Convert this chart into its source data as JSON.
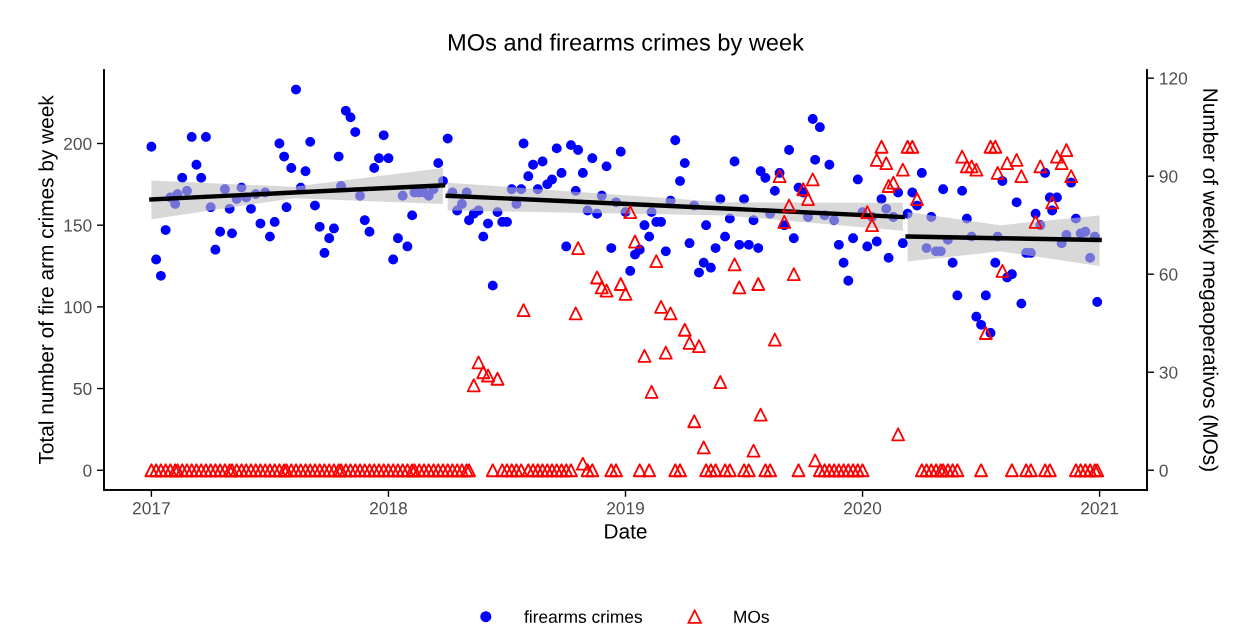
{
  "chart_data": {
    "type": "scatter",
    "title": "MOs and firearms crimes by week",
    "xlabel": "Date",
    "ylabel": "Total number of fire arm crimes by week",
    "y2label": "Number of weekly megaoperativos (MOs)",
    "xlim": [
      2016.8,
      2021.2
    ],
    "xticks": [
      2017,
      2018,
      2019,
      2020,
      2021
    ],
    "ylim": [
      -12,
      245
    ],
    "yticks": [
      0,
      50,
      100,
      150,
      200
    ],
    "y2lim": [
      -6,
      122.5
    ],
    "y2ticks": [
      0,
      30,
      60,
      90,
      120
    ],
    "grid": false,
    "legend": "bottom",
    "x": [
      2017,
      2017.02,
      2017.04,
      2017.06,
      2017.08,
      2017.1,
      2017.11,
      2017.13,
      2017.15,
      2017.17,
      2017.19,
      2017.21,
      2017.23,
      2017.25,
      2017.27,
      2017.29,
      2017.31,
      2017.33,
      2017.34,
      2017.36,
      2017.38,
      2017.4,
      2017.42,
      2017.44,
      2017.46,
      2017.48,
      2017.5,
      2017.52,
      2017.54,
      2017.56,
      2017.57,
      2017.59,
      2017.61,
      2017.63,
      2017.65,
      2017.67,
      2017.69,
      2017.71,
      2017.73,
      2017.75,
      2017.77,
      2017.79,
      2017.8,
      2017.82,
      2017.84,
      2017.86,
      2017.88,
      2017.9,
      2017.92,
      2017.94,
      2017.96,
      2017.98,
      2018,
      2018.02,
      2018.04,
      2018.06,
      2018.08,
      2018.1,
      2018.11,
      2018.13,
      2018.15,
      2018.17,
      2018.19,
      2018.21,
      2018.23,
      2018.25,
      2018.27,
      2018.29,
      2018.31,
      2018.33,
      2018.34,
      2018.36,
      2018.38,
      2018.4,
      2018.42,
      2018.44,
      2018.46,
      2018.48,
      2018.5,
      2018.52,
      2018.54,
      2018.56,
      2018.57,
      2018.59,
      2018.61,
      2018.63,
      2018.65,
      2018.67,
      2018.69,
      2018.71,
      2018.73,
      2018.75,
      2018.77,
      2018.79,
      2018.8,
      2018.82,
      2018.84,
      2018.86,
      2018.88,
      2018.9,
      2018.92,
      2018.94,
      2018.96,
      2018.98,
      2019,
      2019.02,
      2019.04,
      2019.06,
      2019.08,
      2019.1,
      2019.11,
      2019.13,
      2019.15,
      2019.17,
      2019.19,
      2019.21,
      2019.23,
      2019.25,
      2019.27,
      2019.29,
      2019.31,
      2019.33,
      2019.34,
      2019.36,
      2019.38,
      2019.4,
      2019.42,
      2019.44,
      2019.46,
      2019.48,
      2019.5,
      2019.52,
      2019.54,
      2019.56,
      2019.57,
      2019.59,
      2019.61,
      2019.63,
      2019.65,
      2019.67,
      2019.69,
      2019.71,
      2019.73,
      2019.75,
      2019.77,
      2019.79,
      2019.8,
      2019.82,
      2019.84,
      2019.86,
      2019.88,
      2019.9,
      2019.92,
      2019.94,
      2019.96,
      2019.98,
      2020,
      2020.02,
      2020.04,
      2020.06,
      2020.08,
      2020.1,
      2020.11,
      2020.13,
      2020.15,
      2020.17,
      2020.19,
      2020.21,
      2020.23,
      2020.25,
      2020.27,
      2020.29,
      2020.31,
      2020.33,
      2020.34,
      2020.36,
      2020.38,
      2020.4,
      2020.42,
      2020.44,
      2020.46,
      2020.48,
      2020.5,
      2020.52,
      2020.54,
      2020.56,
      2020.57,
      2020.59,
      2020.61,
      2020.63,
      2020.65,
      2020.67,
      2020.69,
      2020.71,
      2020.73,
      2020.75,
      2020.77,
      2020.79,
      2020.8,
      2020.82,
      2020.84,
      2020.86,
      2020.88,
      2020.9,
      2020.92,
      2020.94,
      2020.96,
      2020.98,
      2020.99
    ],
    "series": [
      {
        "name": "firearms crimes",
        "marker": "circle",
        "color": "#0000ff",
        "values": [
          198,
          129,
          119,
          147,
          167,
          163,
          169,
          179,
          171,
          204,
          187,
          179,
          204,
          161,
          135,
          146,
          172,
          160,
          145,
          166,
          173,
          167,
          160,
          169,
          151,
          170,
          143,
          152,
          200,
          192,
          161,
          185,
          233,
          173,
          183,
          201,
          162,
          149,
          133,
          142,
          148,
          192,
          174,
          220,
          216,
          207,
          168,
          153,
          146,
          185,
          191,
          205,
          191,
          129,
          142,
          168,
          137,
          156,
          170,
          170,
          170,
          168,
          172,
          188,
          177,
          203,
          170,
          159,
          163,
          170,
          153,
          157,
          159,
          143,
          151,
          113,
          158,
          152,
          152,
          172,
          163,
          172,
          200,
          180,
          187,
          172,
          189,
          175,
          178,
          197,
          182,
          137,
          199,
          171,
          196,
          182,
          159,
          191,
          157,
          168,
          186,
          136,
          164,
          195,
          158,
          122,
          132,
          135,
          150,
          143,
          158,
          152,
          152,
          134,
          165,
          202,
          177,
          188,
          139,
          162,
          121,
          127,
          150,
          124,
          136,
          166,
          143,
          154,
          189,
          138,
          166,
          138,
          153,
          136,
          183,
          179,
          157,
          171,
          182,
          150,
          196,
          142,
          173,
          170,
          155,
          215,
          190,
          210,
          156,
          187,
          153,
          138,
          127,
          116,
          142,
          178,
          158,
          137,
          155,
          140,
          166,
          160,
          130,
          155,
          170,
          139,
          157,
          170,
          162,
          182,
          136,
          155,
          134,
          134,
          172,
          141,
          127,
          107,
          171,
          154,
          143,
          94,
          89,
          107,
          84,
          127,
          143,
          177,
          118,
          120,
          164,
          102,
          133,
          133,
          157,
          150,
          182,
          167,
          159,
          167,
          139,
          144,
          176,
          154,
          145,
          146,
          130,
          143,
          103
        ]
      },
      {
        "type": "line",
        "color": "#000000",
        "x": [
          2017.0,
          2017.6,
          2018.23
        ],
        "values": [
          165.7,
          170,
          174.4
        ],
        "lower": [
          153.7,
          166.5,
          163
        ],
        "upper": [
          177.3,
          173.5,
          185
        ]
      },
      {
        "type": "line",
        "color": "#000000",
        "x": [
          2018.25,
          2019.42,
          2020.17
        ],
        "values": [
          168,
          160.2,
          155
        ],
        "lower": [
          159,
          156,
          146.6
        ],
        "upper": [
          176,
          164,
          163.7
        ]
      },
      {
        "type": "line",
        "color": "#000000",
        "x": [
          2020.19,
          2020.58,
          2021.0
        ],
        "values": [
          143.1,
          142,
          140.9
        ],
        "lower": [
          127.7,
          134,
          125
        ],
        "upper": [
          158,
          150,
          156
        ]
      },
      {
        "name": "MOs",
        "marker": "triangle",
        "axis": "y2",
        "color": "#ff0000",
        "values": [
          0,
          0,
          0,
          0,
          0,
          0,
          0,
          0,
          0,
          0,
          0,
          0,
          0,
          0,
          0,
          0,
          0,
          0,
          0,
          0,
          0,
          0,
          0,
          0,
          0,
          0,
          0,
          0,
          0,
          0,
          0,
          0,
          0,
          0,
          0,
          0,
          0,
          0,
          0,
          0,
          0,
          0,
          0,
          0,
          0,
          0,
          0,
          0,
          0,
          0,
          0,
          0,
          0,
          0,
          0,
          0,
          0,
          0,
          0,
          0,
          0,
          0,
          0,
          0,
          0,
          0,
          0,
          0,
          0,
          0,
          0,
          26,
          33,
          30,
          29,
          0,
          28,
          0,
          0,
          0,
          0,
          0,
          49,
          0,
          0,
          0,
          0,
          0,
          0,
          0,
          0,
          0,
          0,
          48,
          68,
          2,
          0,
          0,
          59,
          56,
          55,
          0,
          0,
          57,
          54,
          79,
          70,
          0,
          35,
          0,
          24,
          64,
          50,
          36,
          48,
          0,
          0,
          43,
          39,
          15,
          38,
          7,
          0,
          0,
          0,
          27,
          0,
          0,
          63,
          56,
          0,
          0,
          6,
          57,
          17,
          0,
          0,
          40,
          90,
          76,
          81,
          60,
          0,
          86,
          83,
          89,
          3,
          0,
          0,
          0,
          0,
          0,
          0,
          0,
          0,
          0,
          0,
          79,
          75,
          95,
          99,
          94,
          87,
          88,
          11,
          92,
          99,
          99,
          83,
          0,
          0,
          0,
          0,
          0,
          0,
          0,
          0,
          0,
          96,
          93,
          93,
          92,
          0,
          42,
          99,
          99,
          91,
          61,
          94,
          0,
          95,
          90,
          0,
          0,
          76,
          93,
          0,
          0,
          82,
          96,
          94,
          98,
          90,
          0,
          0,
          0,
          0,
          0,
          0
        ]
      }
    ]
  }
}
